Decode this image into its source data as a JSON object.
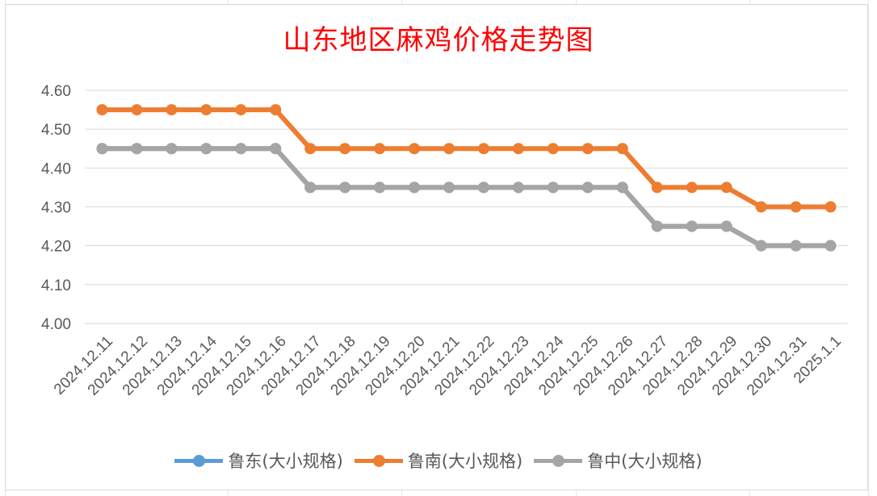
{
  "chart_data": {
    "type": "line",
    "title": "山东地区麻鸡价格走势图",
    "categories": [
      "2024.12.11",
      "2024.12.12",
      "2024.12.13",
      "2024.12.14",
      "2024.12.15",
      "2024.12.16",
      "2024.12.17",
      "2024.12.18",
      "2024.12.19",
      "2024.12.20",
      "2024.12.21",
      "2024.12.22",
      "2024.12.23",
      "2024.12.24",
      "2024.12.25",
      "2024.12.26",
      "2024.12.27",
      "2024.12.28",
      "2024.12.29",
      "2024.12.30",
      "2024.12.31",
      "2025.1.1"
    ],
    "y_ticks": [
      "4.00",
      "4.10",
      "4.20",
      "4.30",
      "4.40",
      "4.50",
      "4.60"
    ],
    "ylim": [
      4.0,
      4.6
    ],
    "grid": true,
    "legend_position": "bottom",
    "series": [
      {
        "name": "鲁东(大小规格)",
        "color": "#5b9bd5",
        "values": [
          4.45,
          4.45,
          4.45,
          4.45,
          4.45,
          4.45,
          4.35,
          4.35,
          4.35,
          4.35,
          4.35,
          4.35,
          4.35,
          4.35,
          4.35,
          4.35,
          4.25,
          4.25,
          4.25,
          4.2,
          4.2,
          4.2
        ]
      },
      {
        "name": "鲁南(大小规格)",
        "color": "#ed7d31",
        "values": [
          4.55,
          4.55,
          4.55,
          4.55,
          4.55,
          4.55,
          4.45,
          4.45,
          4.45,
          4.45,
          4.45,
          4.45,
          4.45,
          4.45,
          4.45,
          4.45,
          4.35,
          4.35,
          4.35,
          4.3,
          4.3,
          4.3
        ]
      },
      {
        "name": "鲁中(大小规格)",
        "color": "#a5a5a5",
        "values": [
          4.45,
          4.45,
          4.45,
          4.45,
          4.45,
          4.45,
          4.35,
          4.35,
          4.35,
          4.35,
          4.35,
          4.35,
          4.35,
          4.35,
          4.35,
          4.35,
          4.25,
          4.25,
          4.25,
          4.2,
          4.2,
          4.2
        ]
      }
    ]
  }
}
